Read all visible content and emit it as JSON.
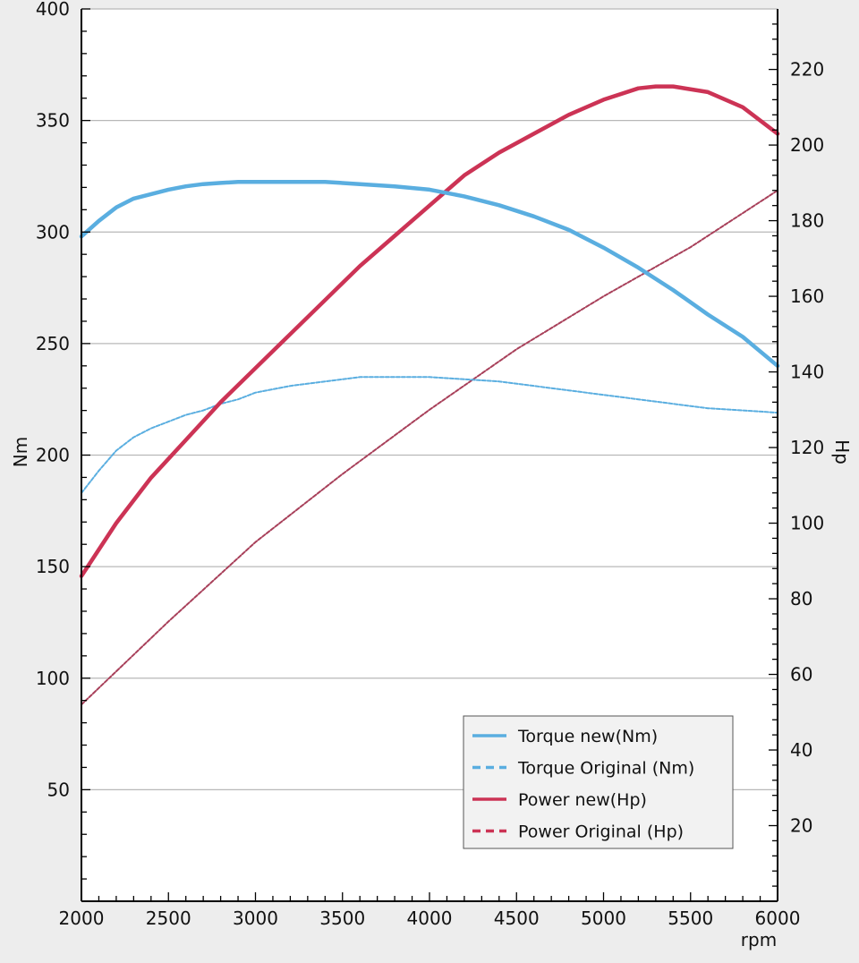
{
  "chart_data": {
    "type": "line",
    "title": "",
    "xlabel": "rpm",
    "ylabel_left": "Nm",
    "ylabel_right": "Hp",
    "xlim": [
      2000,
      6000
    ],
    "ylim_left": [
      0,
      400
    ],
    "ylim_right": [
      0,
      236
    ],
    "x_ticks": [
      2000,
      2500,
      3000,
      3500,
      4000,
      4500,
      5000,
      5500,
      6000
    ],
    "y_left_ticks": [
      50,
      100,
      150,
      200,
      250,
      300,
      350,
      400
    ],
    "y_right_ticks": [
      20,
      40,
      60,
      80,
      100,
      120,
      140,
      160,
      180,
      200,
      220
    ],
    "grid": "horizontal",
    "legend_position": "bottom-right",
    "colors": {
      "torque": "#5aaee0",
      "power": "#cc3355",
      "power_original_line": "#a8405a",
      "plot_bg": "#ffffff",
      "frame_bg": "#ededed"
    },
    "series": [
      {
        "name": "Torque new(Nm)",
        "axis": "left",
        "style": "solid",
        "color": "#5aaee0",
        "x": [
          2000,
          2100,
          2200,
          2300,
          2400,
          2500,
          2600,
          2700,
          2800,
          2900,
          3000,
          3200,
          3400,
          3600,
          3800,
          4000,
          4200,
          4400,
          4600,
          4800,
          5000,
          5200,
          5400,
          5600,
          5800,
          6000
        ],
        "y": [
          298,
          305,
          311,
          315,
          317,
          319,
          320.5,
          321.5,
          322,
          322.5,
          322.5,
          322.5,
          322.5,
          321.5,
          320.5,
          319,
          316,
          312,
          307,
          301,
          293,
          284,
          274,
          263,
          253,
          240
        ]
      },
      {
        "name": "Torque Original (Nm)",
        "axis": "left",
        "style": "dashed",
        "color": "#5aaee0",
        "x": [
          2000,
          2100,
          2200,
          2300,
          2400,
          2500,
          2600,
          2700,
          2800,
          2900,
          3000,
          3200,
          3400,
          3600,
          3800,
          4000,
          4200,
          4400,
          4600,
          4800,
          5000,
          5200,
          5400,
          5600,
          5800,
          6000
        ],
        "y": [
          183,
          193,
          202,
          208,
          212,
          215,
          218,
          220,
          223,
          225,
          228,
          231,
          233,
          235,
          235,
          235,
          234,
          233,
          231,
          229,
          227,
          225,
          223,
          221,
          220,
          219
        ]
      },
      {
        "name": "Power new(Hp)",
        "axis": "right",
        "style": "solid",
        "color": "#cc3355",
        "x": [
          2000,
          2200,
          2400,
          2600,
          2800,
          3000,
          3200,
          3400,
          3600,
          3800,
          4000,
          4200,
          4400,
          4600,
          4800,
          5000,
          5200,
          5300,
          5400,
          5600,
          5800,
          6000
        ],
        "y": [
          86,
          100,
          112,
          122,
          132,
          141,
          150,
          159,
          168,
          176,
          184,
          192,
          198,
          203,
          208,
          212,
          215,
          215.5,
          215.5,
          214,
          210,
          203
        ]
      },
      {
        "name": "Power Original (Hp)",
        "axis": "right",
        "style": "dashed",
        "color": "#cc3355",
        "x": [
          2000,
          2500,
          3000,
          3500,
          4000,
          4500,
          5000,
          5500,
          6000
        ],
        "y": [
          52,
          74,
          95,
          113,
          130,
          146,
          160,
          173,
          188
        ]
      }
    ]
  }
}
